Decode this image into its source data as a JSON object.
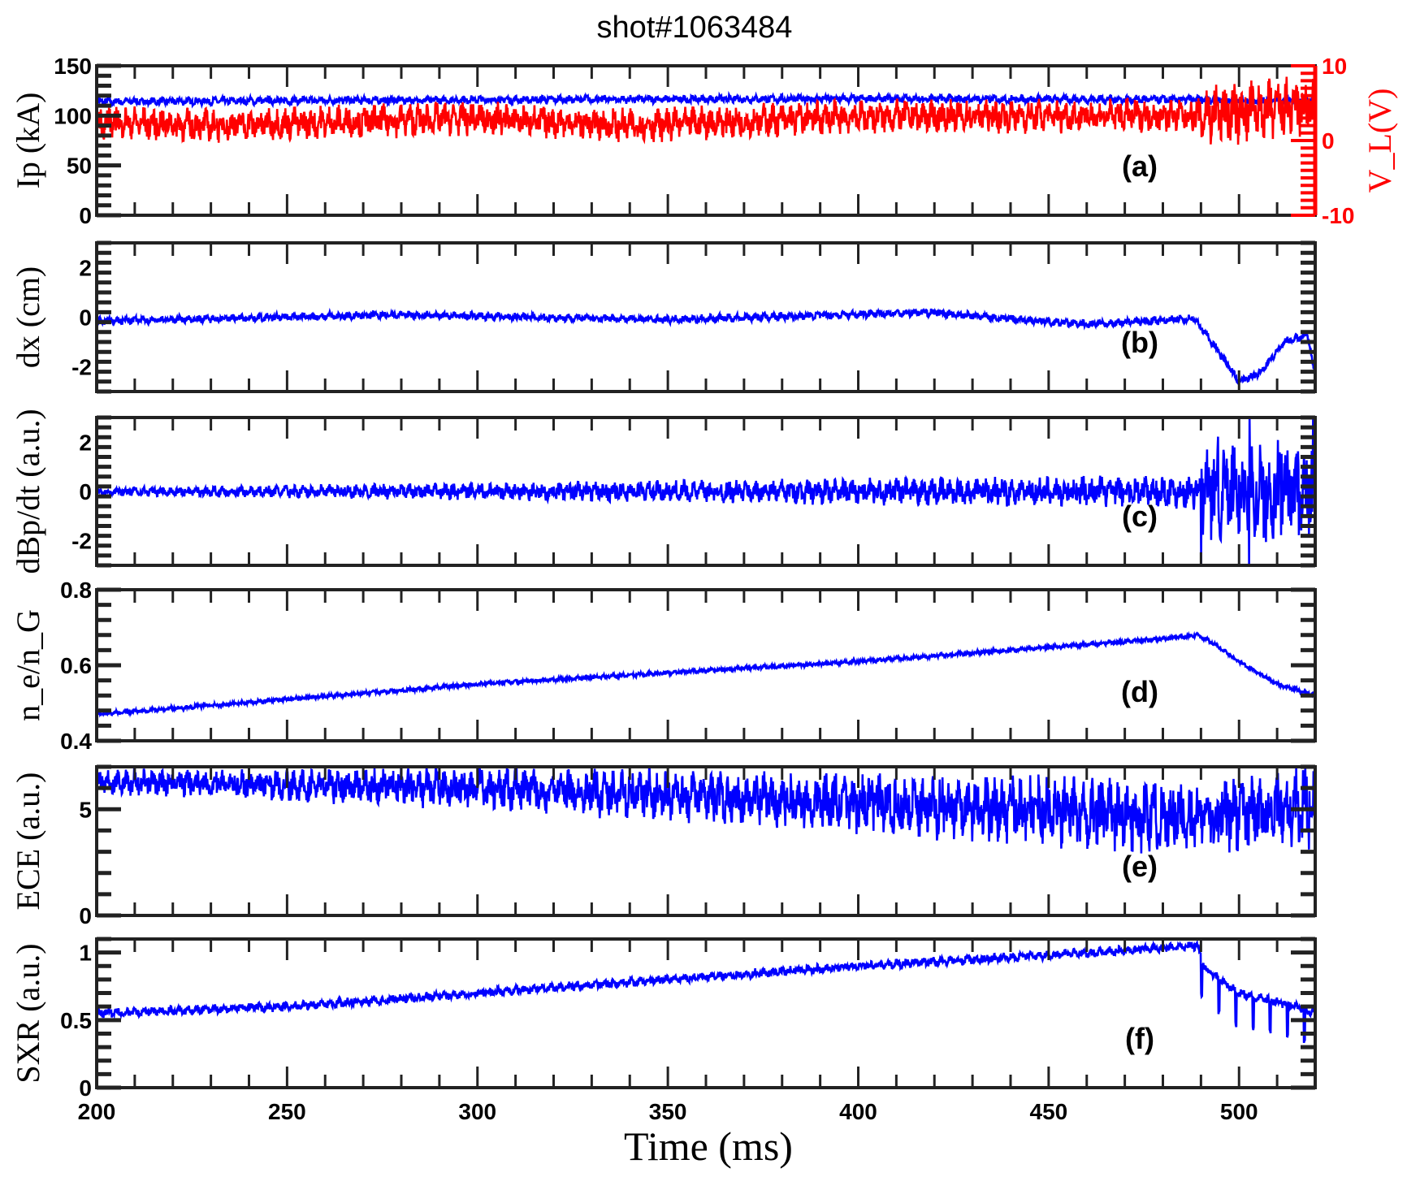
{
  "chart_data": {
    "type": "line",
    "title": "shot#1063484",
    "xlabel": "Time (ms)",
    "xlim": [
      200,
      520
    ],
    "xticks": [
      200,
      250,
      300,
      350,
      400,
      450,
      500
    ],
    "panels": [
      {
        "tag": "(a)",
        "ylabel": "Ip (kA)",
        "ylim": [
          0,
          150
        ],
        "yticks": [
          0,
          50,
          100,
          150
        ],
        "series": [
          {
            "name": "Ip",
            "color": "#0000ff",
            "noise": 3,
            "points": [
              [
                200,
                114
              ],
              [
                300,
                116
              ],
              [
                400,
                117
              ],
              [
                500,
                116
              ],
              [
                520,
                115
              ]
            ]
          }
        ],
        "right_axis": {
          "ylabel": "V_L(V)",
          "color": "#ff0000",
          "ylim": [
            -10,
            10
          ],
          "yticks": [
            -10,
            0,
            10
          ],
          "series": [
            {
              "name": "V_L",
              "color": "#ff0000",
              "noise": 1.6,
              "spikes_after": 490,
              "points": [
                [
                  200,
                  2.5
                ],
                [
                  230,
                  2
                ],
                [
                  300,
                  3
                ],
                [
                  340,
                  2
                ],
                [
                  400,
                  3.2
                ],
                [
                  450,
                  3.3
                ],
                [
                  490,
                  3.4
                ],
                [
                  520,
                  4.5
                ]
              ]
            }
          ]
        }
      },
      {
        "tag": "(b)",
        "ylabel": "dx (cm)",
        "ylim": [
          -3,
          3
        ],
        "yticks": [
          -2,
          0,
          2
        ],
        "series": [
          {
            "name": "dx",
            "color": "#0000ff",
            "noise": 0.12,
            "points": [
              [
                200,
                -0.15
              ],
              [
                280,
                0.1
              ],
              [
                350,
                -0.1
              ],
              [
                418,
                0.2
              ],
              [
                460,
                -0.3
              ],
              [
                488,
                -0.05
              ],
              [
                492,
                -0.8
              ],
              [
                500,
                -2.6
              ],
              [
                505,
                -2.3
              ],
              [
                512,
                -1.0
              ],
              [
                518,
                -0.7
              ],
              [
                520,
                -2.4
              ]
            ]
          }
        ]
      },
      {
        "tag": "(c)",
        "ylabel": "dBp/dt (a.u.)",
        "ylim": [
          -3,
          3
        ],
        "yticks": [
          -2,
          0,
          2
        ],
        "series": [
          {
            "name": "dBp/dt",
            "color": "#0000ff",
            "noise_growth": [
              0.12,
              0.5
            ],
            "burst_after": 490,
            "points": [
              [
                200,
                0
              ],
              [
                520,
                0
              ]
            ]
          }
        ]
      },
      {
        "tag": "(d)",
        "ylabel": "n_e/n_G",
        "ylim": [
          0.4,
          0.8
        ],
        "yticks": [
          0.4,
          0.6,
          0.8
        ],
        "series": [
          {
            "name": "ne/nG",
            "color": "#0000ff",
            "noise": 0.004,
            "points": [
              [
                200,
                0.47
              ],
              [
                300,
                0.55
              ],
              [
                400,
                0.61
              ],
              [
                480,
                0.67
              ],
              [
                489,
                0.68
              ],
              [
                493,
                0.66
              ],
              [
                500,
                0.61
              ],
              [
                510,
                0.55
              ],
              [
                520,
                0.52
              ]
            ]
          }
        ]
      },
      {
        "tag": "(e)",
        "ylabel": "ECE (a.u.)",
        "ylim": [
          0,
          7
        ],
        "yticks": [
          0,
          5
        ],
        "series": [
          {
            "name": "ECE",
            "color": "#0000ff",
            "noise_growth": [
              0.4,
              1.3
            ],
            "points": [
              [
                200,
                6.3
              ],
              [
                300,
                6.0
              ],
              [
                400,
                5.3
              ],
              [
                490,
                4.6
              ],
              [
                520,
                5.2
              ]
            ]
          }
        ]
      },
      {
        "tag": "(f)",
        "ylabel": "SXR (a.u.)",
        "ylim": [
          0,
          1.1
        ],
        "yticks": [
          0,
          0.5,
          1
        ],
        "series": [
          {
            "name": "SXR",
            "color": "#0000ff",
            "noise": 0.025,
            "sawteeth_after": 490,
            "points": [
              [
                200,
                0.55
              ],
              [
                250,
                0.6
              ],
              [
                300,
                0.7
              ],
              [
                350,
                0.8
              ],
              [
                400,
                0.9
              ],
              [
                450,
                0.98
              ],
              [
                489,
                1.05
              ],
              [
                491,
                0.88
              ],
              [
                500,
                0.7
              ],
              [
                515,
                0.6
              ],
              [
                520,
                0.55
              ]
            ]
          }
        ]
      }
    ]
  }
}
